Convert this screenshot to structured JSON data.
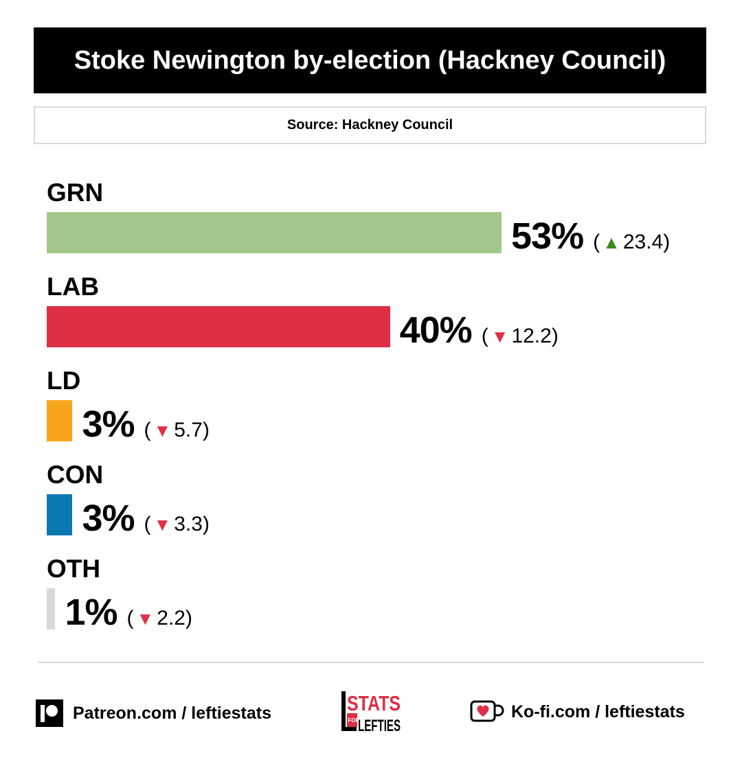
{
  "header": {
    "title": "Stoke Newington by-election (Hackney Council)",
    "source": "Source: Hackney Council"
  },
  "chart_data": {
    "type": "bar",
    "orientation": "horizontal",
    "title": "Stoke Newington by-election (Hackney Council)",
    "xlim": [
      0,
      100
    ],
    "categories": [
      "GRN",
      "LAB",
      "LD",
      "CON",
      "OTH"
    ],
    "values": [
      53,
      40,
      3,
      3,
      1
    ],
    "value_labels": [
      "53%",
      "40%",
      "3%",
      "3%",
      "1%"
    ],
    "changes": [
      23.4,
      -12.2,
      -5.7,
      -3.3,
      -2.2
    ],
    "change_labels": [
      "23.4",
      "12.2",
      "5.7",
      "3.3",
      "2.2"
    ],
    "colors": [
      "#a3c78a",
      "#dd2e44",
      "#f9a51b",
      "#0b78b1",
      "#d9d9d9"
    ],
    "up_color": "#3a8a1f",
    "down_color": "#e03048",
    "grid": false,
    "legend": "none"
  },
  "footer": {
    "patreon_icon": "patreon-icon",
    "patreon_text": "Patreon.com / leftiestats",
    "logo_top": "STATS",
    "logo_for": "FOR",
    "logo_bottom": "LEFTIES",
    "kofi_icon": "kofi-cup-heart-icon",
    "kofi_text": "Ko-fi.com / leftiestats"
  }
}
